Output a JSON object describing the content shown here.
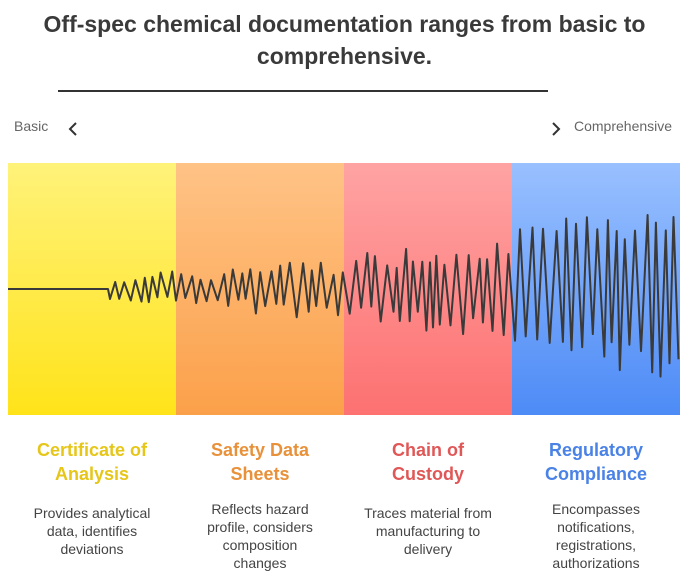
{
  "title": {
    "line1": "Off-spec chemical documentation ranges from basic to",
    "line2": "comprehensive."
  },
  "axis": {
    "left_label": "Basic",
    "right_label": "Comprehensive",
    "left_icon": "chevron-left-icon",
    "right_icon": "chevron-right-icon"
  },
  "stages": [
    {
      "title_line1": "Certificate of",
      "title_line2": "Analysis",
      "description": [
        "Provides analytical",
        "data, identifies",
        "deviations"
      ],
      "color": "#e6c619"
    },
    {
      "title_line1": "Safety Data",
      "title_line2": "Sheets",
      "description": [
        "Reflects hazard",
        "profile, considers",
        "composition",
        "changes"
      ],
      "color": "#e8913a"
    },
    {
      "title_line1": "Chain of",
      "title_line2": "Custody",
      "description": [
        "Traces material from",
        "manufacturing to",
        "delivery"
      ],
      "color": "#e05757"
    },
    {
      "title_line1": "Regulatory",
      "title_line2": "Compliance",
      "description": [
        "Encompasses",
        "notifications,",
        "registrations,",
        "authorizations"
      ],
      "color": "#4a82e6"
    }
  ]
}
